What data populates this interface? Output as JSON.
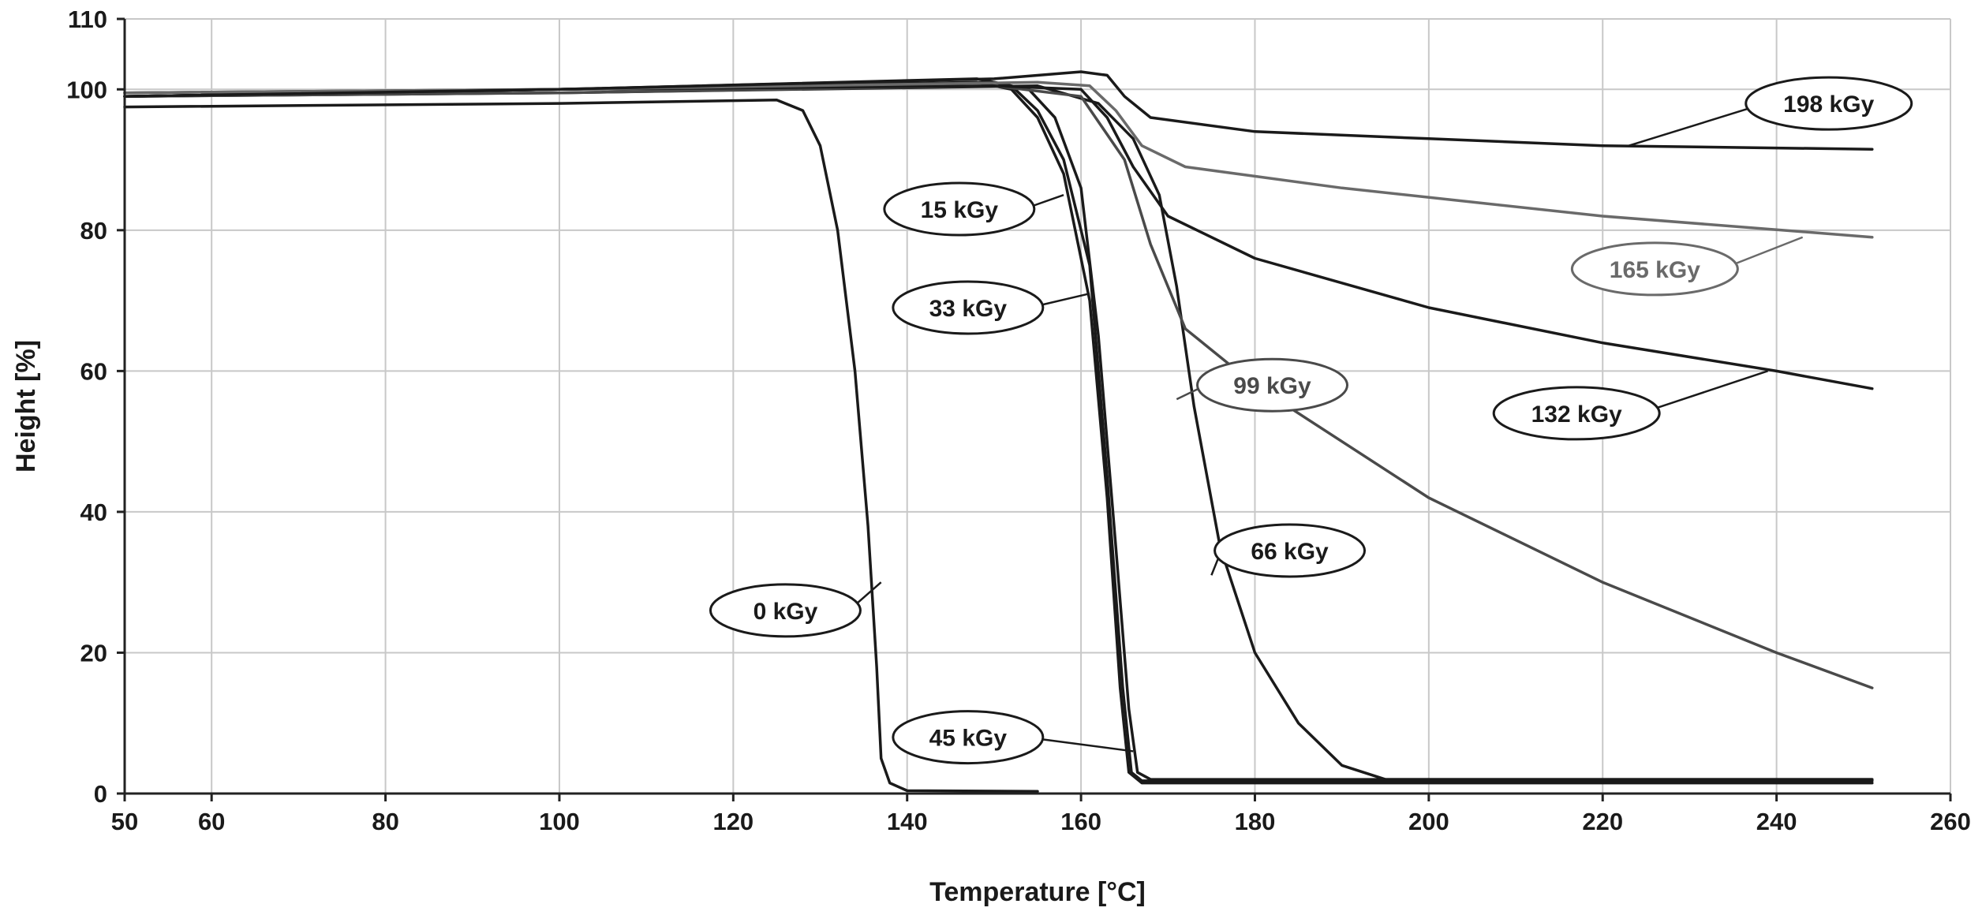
{
  "chart_data": {
    "type": "line",
    "title": "",
    "xlabel": "Temperature [°C]",
    "ylabel": "Height [%]",
    "xlim": [
      50,
      260
    ],
    "ylim": [
      0,
      110
    ],
    "grid": true,
    "x_ticks": [
      50,
      60,
      80,
      100,
      120,
      140,
      160,
      180,
      200,
      220,
      240,
      260
    ],
    "y_ticks": [
      0,
      20,
      40,
      60,
      80,
      100,
      110
    ],
    "series": [
      {
        "name": "0 kGy",
        "color": "#1a1a1a",
        "points": [
          [
            50,
            97.5
          ],
          [
            100,
            98
          ],
          [
            125,
            98.5
          ],
          [
            128,
            97
          ],
          [
            130,
            92
          ],
          [
            132,
            80
          ],
          [
            134,
            60
          ],
          [
            135.5,
            38
          ],
          [
            136.5,
            18
          ],
          [
            137,
            5
          ],
          [
            138,
            1.5
          ],
          [
            140,
            0.4
          ],
          [
            155,
            0.3
          ]
        ],
        "label": "0 kGy",
        "label_at": [
          126,
          26
        ],
        "pointer_to": [
          137,
          30
        ]
      },
      {
        "name": "15 kGy",
        "color": "#1a1a1a",
        "points": [
          [
            50,
            99
          ],
          [
            100,
            100
          ],
          [
            148,
            101
          ],
          [
            152,
            100
          ],
          [
            155,
            96
          ],
          [
            158,
            88
          ],
          [
            161,
            70
          ],
          [
            163,
            42
          ],
          [
            164.5,
            15
          ],
          [
            165.5,
            3
          ],
          [
            167,
            1.5
          ],
          [
            251,
            1.5
          ]
        ],
        "label": "15 kGy",
        "label_at": [
          146,
          83
        ],
        "pointer_to": [
          158,
          85
        ]
      },
      {
        "name": "33 kGy",
        "color": "#1a1a1a",
        "points": [
          [
            50,
            99.5
          ],
          [
            100,
            100
          ],
          [
            148,
            101.5
          ],
          [
            152,
            100.5
          ],
          [
            155,
            97
          ],
          [
            158,
            90
          ],
          [
            161,
            75
          ],
          [
            163,
            45
          ],
          [
            164.8,
            15
          ],
          [
            165.8,
            3
          ],
          [
            167,
            1.8
          ],
          [
            251,
            1.8
          ]
        ],
        "label": "33 kGy",
        "label_at": [
          147,
          69
        ],
        "pointer_to": [
          161,
          71
        ]
      },
      {
        "name": "45 kGy",
        "color": "#1a1a1a",
        "points": [
          [
            50,
            99
          ],
          [
            100,
            100
          ],
          [
            150,
            101
          ],
          [
            154,
            100
          ],
          [
            157,
            96
          ],
          [
            160,
            86
          ],
          [
            162,
            65
          ],
          [
            164,
            35
          ],
          [
            165.5,
            12
          ],
          [
            166.5,
            3
          ],
          [
            168,
            2
          ],
          [
            251,
            2
          ]
        ],
        "label": "45 kGy",
        "label_at": [
          147,
          8
        ],
        "pointer_to": [
          166,
          6
        ]
      },
      {
        "name": "66 kGy",
        "color": "#1a1a1a",
        "points": [
          [
            50,
            99
          ],
          [
            100,
            99.5
          ],
          [
            155,
            100.5
          ],
          [
            162,
            98
          ],
          [
            166,
            93
          ],
          [
            169,
            85
          ],
          [
            171,
            72
          ],
          [
            173,
            55
          ],
          [
            176,
            35
          ],
          [
            180,
            20
          ],
          [
            185,
            10
          ],
          [
            190,
            4
          ],
          [
            195,
            2
          ],
          [
            251,
            2
          ]
        ],
        "label": "66 kGy",
        "label_at": [
          184,
          34.5
        ],
        "pointer_to": [
          175,
          31
        ]
      },
      {
        "name": "99 kGy",
        "color": "#4a4a4a",
        "points": [
          [
            50,
            99
          ],
          [
            100,
            99.5
          ],
          [
            150,
            100.5
          ],
          [
            160,
            99
          ],
          [
            165,
            90
          ],
          [
            168,
            78
          ],
          [
            172,
            66
          ],
          [
            180,
            58
          ],
          [
            200,
            42
          ],
          [
            220,
            30
          ],
          [
            240,
            20
          ],
          [
            251,
            15
          ]
        ],
        "label": "99 kGy",
        "label_at": [
          182,
          58
        ],
        "pointer_to": [
          171,
          56
        ]
      },
      {
        "name": "132 kGy",
        "color": "#1a1a1a",
        "points": [
          [
            50,
            99
          ],
          [
            100,
            100
          ],
          [
            150,
            100.5
          ],
          [
            160,
            100
          ],
          [
            163,
            96
          ],
          [
            166,
            89
          ],
          [
            170,
            82
          ],
          [
            180,
            76
          ],
          [
            200,
            69
          ],
          [
            220,
            64
          ],
          [
            240,
            60
          ],
          [
            251,
            57.5
          ]
        ],
        "label": "132 kGy",
        "label_at": [
          217,
          54
        ],
        "pointer_to": [
          239,
          60
        ]
      },
      {
        "name": "165 kGy",
        "color": "#6a6a6a",
        "points": [
          [
            50,
            99.5
          ],
          [
            100,
            100
          ],
          [
            155,
            101
          ],
          [
            161,
            100.5
          ],
          [
            164,
            97
          ],
          [
            167,
            92
          ],
          [
            172,
            89
          ],
          [
            190,
            86
          ],
          [
            220,
            82
          ],
          [
            251,
            79
          ]
        ],
        "label": "165 kGy",
        "label_at": [
          226,
          74.5
        ],
        "pointer_to": [
          243,
          79
        ]
      },
      {
        "name": "198 kGy",
        "color": "#1a1a1a",
        "points": [
          [
            50,
            99
          ],
          [
            100,
            100
          ],
          [
            150,
            101.5
          ],
          [
            160,
            102.5
          ],
          [
            163,
            102
          ],
          [
            165,
            99
          ],
          [
            168,
            96
          ],
          [
            180,
            94
          ],
          [
            200,
            93
          ],
          [
            220,
            92
          ],
          [
            251,
            91.5
          ]
        ],
        "label": "198 kGy",
        "label_at": [
          246,
          98
        ],
        "pointer_to": [
          223,
          92
        ]
      }
    ]
  }
}
